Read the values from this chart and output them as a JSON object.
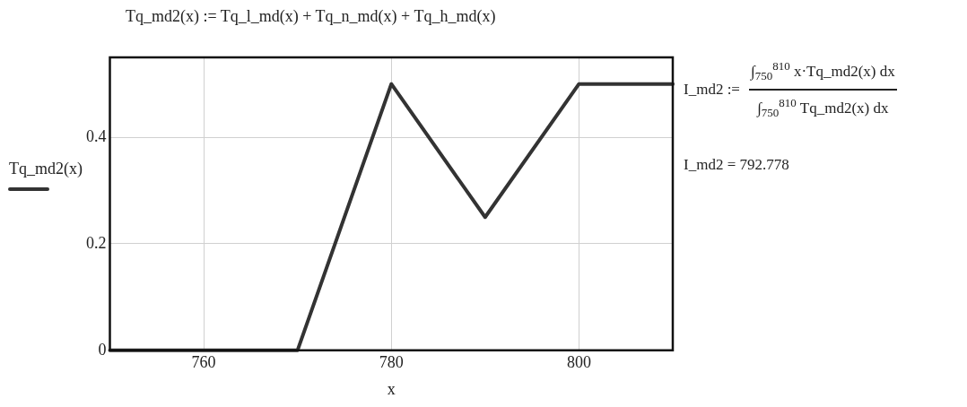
{
  "chart_data": {
    "type": "line",
    "title": "Tq_md2(x) := Tq_l_md(x) + Tq_n_md(x) + Tq_h_md(x)",
    "xlabel": "x",
    "ylabel": "Tq_md2(x)",
    "annotations": [
      "I_md2 :=",
      "∫$_{750}$$^{810}$ x·Tq_md2(x) dx",
      "∫$_{750}$$^{810}$ Tq_md2(x) dx",
      "I_md2 = 792.778"
    ],
    "x": [
      750,
      770,
      780,
      790,
      800,
      810
    ],
    "series": [
      {
        "color": "#333333",
        "values": [
          0,
          0,
          0.5,
          0.25,
          0.5,
          0.5
        ]
      }
    ],
    "xlim": [
      750,
      810
    ],
    "xticks": [
      760,
      780,
      800
    ],
    "ylim": [
      0,
      0.55
    ],
    "yticks": [
      0,
      0.2,
      0.4
    ],
    "grid": true,
    "marker": "none",
    "line_style": "solid"
  }
}
